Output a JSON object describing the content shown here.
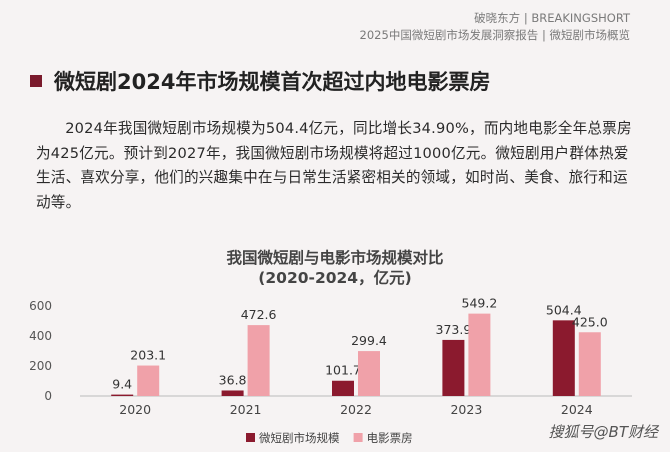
{
  "header": {
    "brand": "破晓东方 | BREAKINGSHORT",
    "subtitle": "2025中国微短剧市场发展洞察报告 | 微短剧市场概览"
  },
  "slide_title": "微短剧2024年市场规模首次超过内地电影票房",
  "paragraph": "2024年我国微短剧市场规模为504.4亿元，同比增长34.90%，而内地电影全年总票房为425亿元。预计到2027年，我国微短剧市场规模将超过1000亿元。微短剧用户群体热爱生活、喜欢分享，他们的兴趣集中在与日常生活紧密相关的领域，如时尚、美食、旅行和运动等。",
  "watermark": "搜狐号@BT财经",
  "colors": {
    "series1": "#8b1a2e",
    "series2": "#f0a1a9",
    "accent": "#7a1a2c"
  },
  "chart_data": {
    "type": "bar",
    "title": "我国微短剧与电影市场规模对比",
    "subtitle": "(2020-2024，亿元)",
    "categories": [
      "2020",
      "2021",
      "2022",
      "2023",
      "2024"
    ],
    "series": [
      {
        "name": "微短剧市场规模",
        "values": [
          9.4,
          36.8,
          101.7,
          373.9,
          504.4
        ],
        "labels": [
          "9.4",
          "36.8",
          "101.7",
          "373.9",
          "504.4"
        ]
      },
      {
        "name": "电影票房",
        "values": [
          203.1,
          472.6,
          299.4,
          549.2,
          425.0
        ],
        "labels": [
          "203.1",
          "472.6",
          "299.4",
          "549.2",
          "425.0"
        ]
      }
    ],
    "yticks": [
      "0",
      "200",
      "400",
      "600"
    ],
    "ylim": [
      0,
      600
    ],
    "grid": false,
    "legend": "bottom"
  }
}
